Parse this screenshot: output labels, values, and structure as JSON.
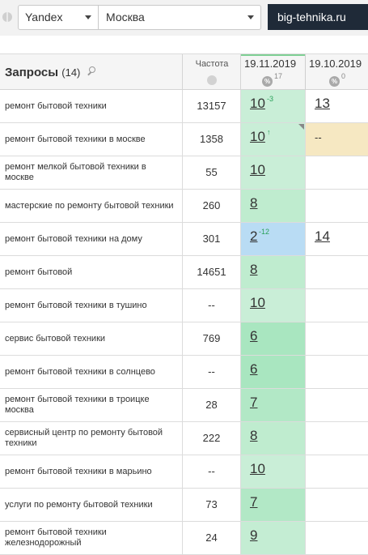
{
  "toolbar": {
    "engine": "Yandex",
    "region": "Москва",
    "site": "big-tehnika.ru"
  },
  "header": {
    "queries_label": "Запросы",
    "queries_count": "(14)",
    "frequency_label": "Частота",
    "dates": [
      {
        "label": "19.11.2019",
        "pct": "17"
      },
      {
        "label": "19.10.2019",
        "pct": "0"
      }
    ]
  },
  "rows": [
    {
      "query": "ремонт бытовой техники",
      "freq": "13157",
      "pos1": "10",
      "delta1": "-3",
      "pos2": "13",
      "bg1": "#c9eed7",
      "bg2": "#ffffff",
      "corner": false
    },
    {
      "query": "ремонт бытовой техники в москве",
      "freq": "1358",
      "pos1": "10",
      "delta1": "↑",
      "pos2": "--",
      "bg1": "#c9eed7",
      "bg2": "#f6e8c2",
      "corner": true
    },
    {
      "query": "ремонт мелкой бытовой техники в москве",
      "freq": "55",
      "pos1": "10",
      "delta1": "",
      "pos2": "",
      "bg1": "#c9eed7",
      "bg2": "#ffffff",
      "corner": false
    },
    {
      "query": "мастерские по ремонту бытовой техники",
      "freq": "260",
      "pos1": "8",
      "delta1": "",
      "pos2": "",
      "bg1": "#bfeccf",
      "bg2": "#ffffff",
      "corner": false
    },
    {
      "query": "ремонт бытовой техники на дому",
      "freq": "301",
      "pos1": "2",
      "delta1": "-12",
      "pos2": "14",
      "bg1": "#b9dcf4",
      "bg2": "#ffffff",
      "corner": false
    },
    {
      "query": "ремонт бытовой",
      "freq": "14651",
      "pos1": "8",
      "delta1": "",
      "pos2": "",
      "bg1": "#bfeccf",
      "bg2": "#ffffff",
      "corner": false
    },
    {
      "query": "ремонт бытовой техники в тушино",
      "freq": "--",
      "pos1": "10",
      "delta1": "",
      "pos2": "",
      "bg1": "#c9eed7",
      "bg2": "#ffffff",
      "corner": false
    },
    {
      "query": "сервис бытовой техники",
      "freq": "769",
      "pos1": "6",
      "delta1": "",
      "pos2": "",
      "bg1": "#a9e6c0",
      "bg2": "#ffffff",
      "corner": false
    },
    {
      "query": "ремонт бытовой техники в солнцево",
      "freq": "--",
      "pos1": "6",
      "delta1": "",
      "pos2": "",
      "bg1": "#a9e6c0",
      "bg2": "#ffffff",
      "corner": false
    },
    {
      "query": "ремонт бытовой техники в троицке москва",
      "freq": "28",
      "pos1": "7",
      "delta1": "",
      "pos2": "",
      "bg1": "#b2e8c6",
      "bg2": "#ffffff",
      "corner": false
    },
    {
      "query": "сервисный центр по ремонту бытовой техники",
      "freq": "222",
      "pos1": "8",
      "delta1": "",
      "pos2": "",
      "bg1": "#bfeccf",
      "bg2": "#ffffff",
      "corner": false
    },
    {
      "query": "ремонт бытовой техники в марьино",
      "freq": "--",
      "pos1": "10",
      "delta1": "",
      "pos2": "",
      "bg1": "#c9eed7",
      "bg2": "#ffffff",
      "corner": false
    },
    {
      "query": "услуги по ремонту бытовой техники",
      "freq": "73",
      "pos1": "7",
      "delta1": "",
      "pos2": "",
      "bg1": "#b2e8c6",
      "bg2": "#ffffff",
      "corner": false
    },
    {
      "query": "ремонт бытовой техники железнодорожный",
      "freq": "24",
      "pos1": "9",
      "delta1": "",
      "pos2": "",
      "bg1": "#c4edd3",
      "bg2": "#ffffff",
      "corner": false
    }
  ]
}
